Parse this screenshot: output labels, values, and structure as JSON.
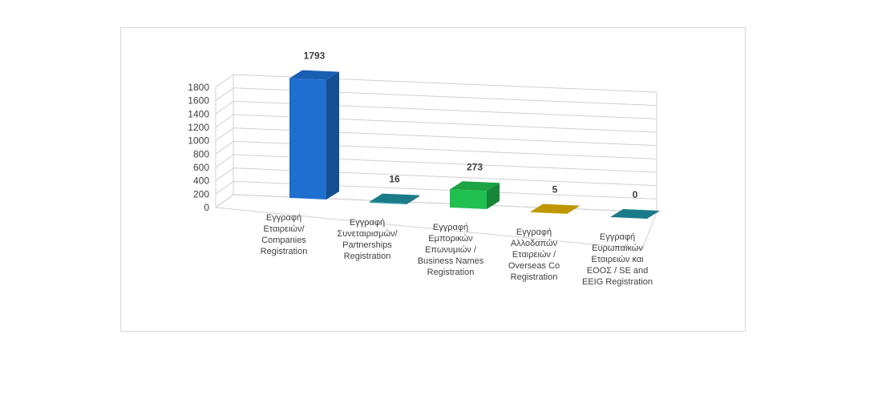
{
  "chart_data": {
    "type": "bar",
    "style": "3d-column",
    "categories": [
      "Εγγραφή\nΕταιρειών/\nCompanies\nRegistration",
      "Εγγραφή\nΣυνεταιρισμών/\nPartnerships\nRegistration",
      "Εγγραφή\nΕμπορικών\nΕπωνυμιών /\nBusiness Names\nRegistration",
      "Εγγραφή\nΑλλοδαπών\nΕταιρειών /\nOverseas Co\nRegistration",
      "Εγγραφή\nΕυρωπαϊκών\nΕταιρειών και\nΕΟΟΣ / SE and\nEEIG Registration"
    ],
    "values": [
      1793,
      16,
      273,
      5,
      0
    ],
    "value_labels": [
      "1793",
      "16",
      "273",
      "5",
      "0"
    ],
    "colors": [
      "#1f6fd1",
      "#1f8fa0",
      "#20c050",
      "#e0b000",
      "#1f8fa0"
    ],
    "ylim": [
      0,
      1800
    ],
    "yticks": [
      "0",
      "200",
      "400",
      "600",
      "800",
      "1000",
      "1200",
      "1400",
      "1600",
      "1800"
    ],
    "title": "",
    "xlabel": "",
    "ylabel": "",
    "grid": true,
    "legend": "none"
  }
}
